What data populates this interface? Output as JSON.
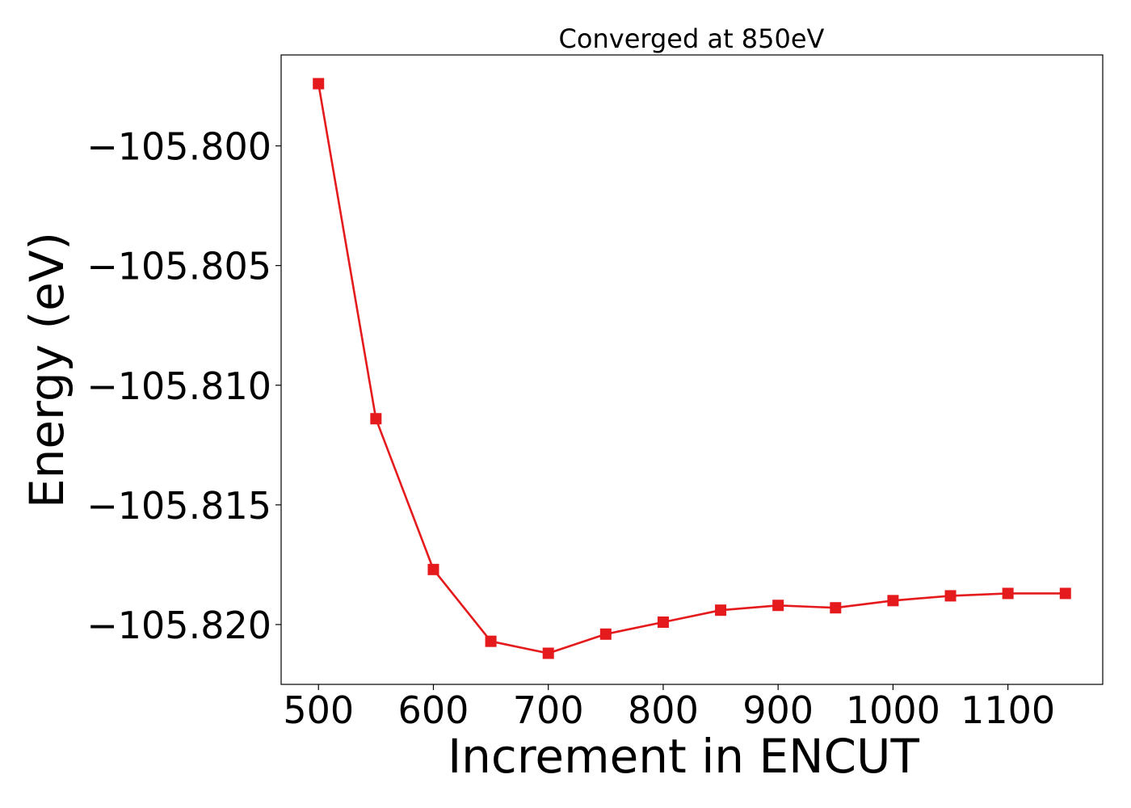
{
  "chart_data": {
    "type": "line",
    "title": "Converged at 850eV",
    "xlabel": "Increment in ENCUT",
    "ylabel": "Energy (eV)",
    "xlim": [
      467.5,
      1182.5
    ],
    "ylim": [
      -105.8225,
      -105.7962
    ],
    "xticks": [
      500,
      600,
      700,
      800,
      900,
      1000,
      1100
    ],
    "xtick_labels": [
      "500",
      "600",
      "700",
      "800",
      "900",
      "1000",
      "1100"
    ],
    "yticks": [
      -105.8,
      -105.805,
      -105.81,
      -105.815,
      -105.82
    ],
    "ytick_labels": [
      "−105.800",
      "−105.805",
      "−105.810",
      "−105.815",
      "−105.820"
    ],
    "grid": false,
    "series": [
      {
        "color": "#e41a1c",
        "marker": "square",
        "x": [
          500,
          550,
          600,
          650,
          700,
          750,
          800,
          850,
          900,
          950,
          1000,
          1050,
          1100,
          1150
        ],
        "y": [
          -105.7974,
          -105.8114,
          -105.8177,
          -105.8207,
          -105.8212,
          -105.8204,
          -105.8199,
          -105.8194,
          -105.8192,
          -105.8193,
          -105.819,
          -105.8188,
          -105.8187,
          -105.8187
        ]
      }
    ]
  }
}
